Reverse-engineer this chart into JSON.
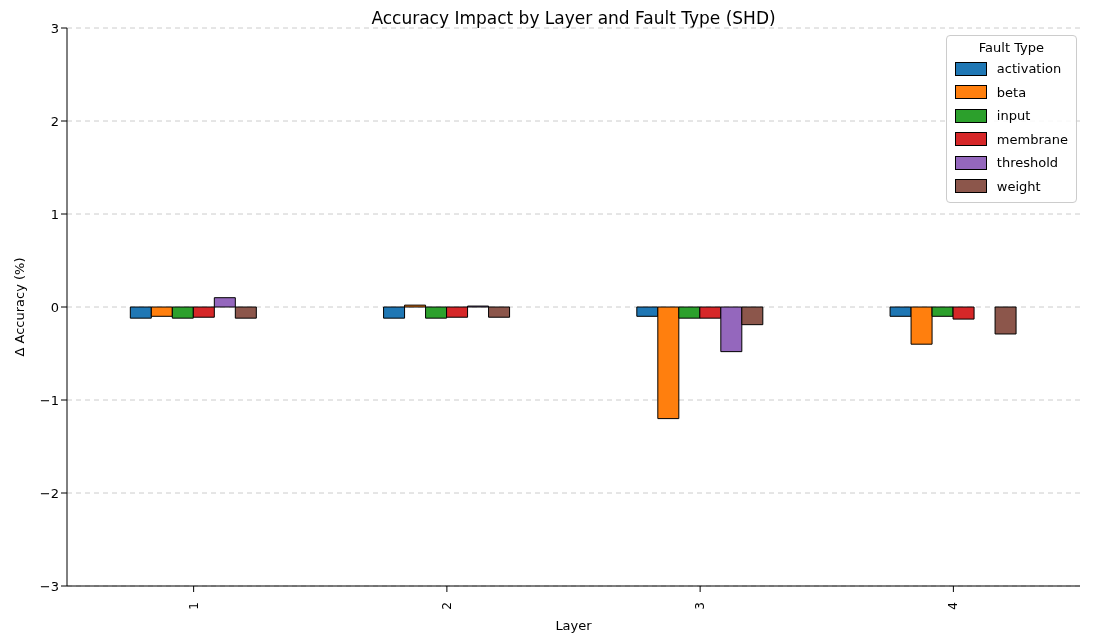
{
  "chart_data": {
    "type": "bar",
    "title": "Accuracy Impact by Layer and Fault Type (SHD)",
    "xlabel": "Layer",
    "ylabel": "Δ Accuracy (%)",
    "legend_title": "Fault Type",
    "categories": [
      "1",
      "2",
      "3",
      "4"
    ],
    "series": [
      {
        "name": "activation",
        "color": "#1f77b4",
        "values": [
          -0.12,
          -0.12,
          -0.1,
          -0.1
        ]
      },
      {
        "name": "beta",
        "color": "#ff7f0e",
        "values": [
          -0.1,
          0.02,
          -1.2,
          -0.4
        ]
      },
      {
        "name": "input",
        "color": "#2ca02c",
        "values": [
          -0.12,
          -0.12,
          -0.12,
          -0.1
        ]
      },
      {
        "name": "membrane",
        "color": "#d62728",
        "values": [
          -0.11,
          -0.11,
          -0.12,
          -0.13
        ]
      },
      {
        "name": "threshold",
        "color": "#9467bd",
        "values": [
          0.1,
          0.01,
          -0.48,
          0.0
        ]
      },
      {
        "name": "weight",
        "color": "#8c564b",
        "values": [
          -0.12,
          -0.11,
          -0.19,
          -0.29
        ]
      }
    ],
    "ylim": [
      -3,
      3
    ],
    "yticks": [
      -3,
      -2,
      -1,
      0,
      1,
      2,
      3
    ],
    "grid": "y",
    "legend": "top right"
  }
}
